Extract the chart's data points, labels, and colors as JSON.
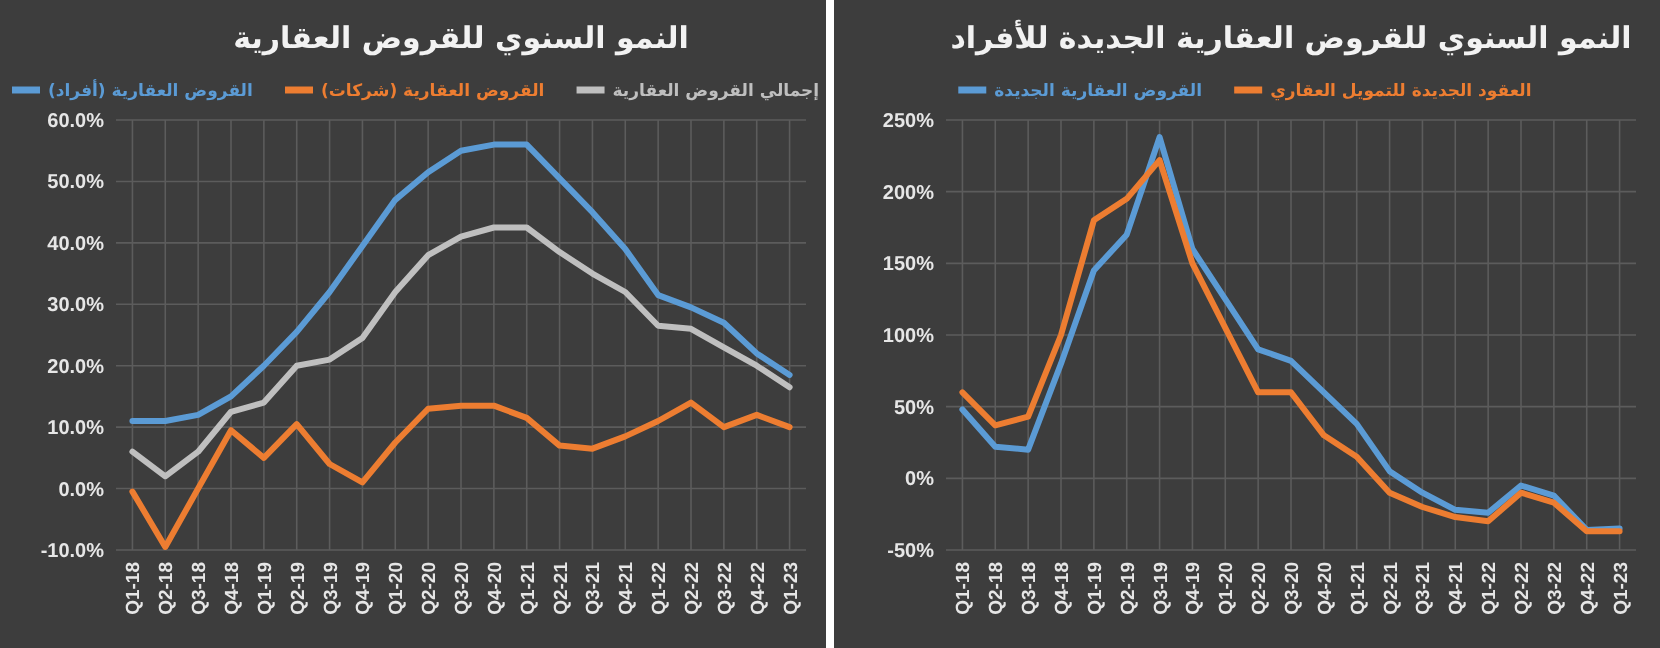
{
  "chart_data": [
    {
      "type": "line",
      "title": "النمو السنوي للقروض العقارية",
      "categories": [
        "Q1-18",
        "Q2-18",
        "Q3-18",
        "Q4-18",
        "Q1-19",
        "Q2-19",
        "Q3-19",
        "Q4-19",
        "Q1-20",
        "Q2-20",
        "Q3-20",
        "Q4-20",
        "Q1-21",
        "Q2-21",
        "Q3-21",
        "Q4-21",
        "Q1-22",
        "Q2-22",
        "Q3-22",
        "Q4-22",
        "Q1-23"
      ],
      "series": [
        {
          "name": "القروض العقارية (أفراد)",
          "color": "#5b9bd5",
          "values": [
            11,
            11,
            12,
            15,
            20,
            25.5,
            32,
            39.5,
            47,
            51.5,
            55,
            56,
            56,
            50.5,
            45,
            39,
            31.5,
            29.5,
            27,
            22,
            18.5
          ]
        },
        {
          "name": "القروض العقارية (شركات)",
          "color": "#ed7d31",
          "values": [
            -0.5,
            -9.5,
            0,
            9.5,
            5,
            10.5,
            4,
            1,
            7.5,
            13,
            13.5,
            13.5,
            11.5,
            7,
            6.5,
            8.5,
            11,
            14,
            10,
            12,
            10
          ]
        },
        {
          "name": "إجمالي القروض العقارية",
          "color": "#bfbfbf",
          "values": [
            6,
            2,
            6,
            12.5,
            14,
            20,
            21,
            24.5,
            32,
            38,
            41,
            42.5,
            42.5,
            38.5,
            35,
            32,
            26.5,
            26,
            23,
            20,
            16.5
          ]
        }
      ],
      "ylim": [
        -10,
        60
      ],
      "yticks": [
        {
          "value": -10,
          "label": "-10.0%"
        },
        {
          "value": 0,
          "label": "0.0%"
        },
        {
          "value": 10,
          "label": "10.0%"
        },
        {
          "value": 20,
          "label": "20.0%"
        },
        {
          "value": 30,
          "label": "30.0%"
        },
        {
          "value": 40,
          "label": "40.0%"
        },
        {
          "value": 50,
          "label": "50.0%"
        },
        {
          "value": 60,
          "label": "60.0%"
        }
      ],
      "grid": true,
      "legend": "top"
    },
    {
      "type": "line",
      "title": "النمو السنوي للقروض العقارية الجديدة للأفراد",
      "categories": [
        "Q1-18",
        "Q2-18",
        "Q3-18",
        "Q4-18",
        "Q1-19",
        "Q2-19",
        "Q3-19",
        "Q4-19",
        "Q1-20",
        "Q2-20",
        "Q3-20",
        "Q4-20",
        "Q1-21",
        "Q2-21",
        "Q3-21",
        "Q4-21",
        "Q1-22",
        "Q2-22",
        "Q3-22",
        "Q4-22",
        "Q1-23"
      ],
      "series": [
        {
          "name": "القروض العقارية الجديدة",
          "color": "#5b9bd5",
          "values": [
            48,
            22,
            20,
            80,
            145,
            170,
            238,
            160,
            125,
            90,
            82,
            60,
            38,
            5,
            -10,
            -22,
            -24,
            -5,
            -12,
            -36,
            -35
          ]
        },
        {
          "name": "العقود الجديدة للتمويل العقاري",
          "color": "#ed7d31",
          "values": [
            60,
            37,
            43,
            100,
            180,
            195,
            222,
            150,
            105,
            60,
            60,
            30,
            15,
            -10,
            -20,
            -27,
            -30,
            -10,
            -17,
            -37,
            -37
          ]
        }
      ],
      "ylim": [
        -50,
        250
      ],
      "yticks": [
        {
          "value": -50,
          "label": "-50%"
        },
        {
          "value": 0,
          "label": "0%"
        },
        {
          "value": 50,
          "label": "50%"
        },
        {
          "value": 100,
          "label": "100%"
        },
        {
          "value": 150,
          "label": "150%"
        },
        {
          "value": 200,
          "label": "200%"
        },
        {
          "value": 250,
          "label": "250%"
        }
      ],
      "grid": true,
      "legend": "top"
    }
  ]
}
